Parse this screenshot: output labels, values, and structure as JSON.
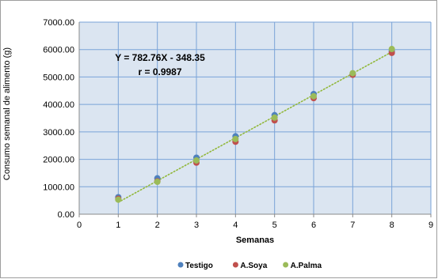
{
  "chart_data": {
    "type": "scatter",
    "xlabel": "Semanas",
    "ylabel": "Consumo semanal de alimento (g)",
    "xlim": [
      0,
      9
    ],
    "ylim": [
      0,
      7000
    ],
    "x_ticks": [
      "0",
      "1",
      "2",
      "3",
      "4",
      "5",
      "6",
      "7",
      "8",
      "9"
    ],
    "y_ticks": [
      "0.00",
      "1000.00",
      "2000.00",
      "3000.00",
      "4000.00",
      "5000.00",
      "6000.00",
      "7000.00"
    ],
    "grid": true,
    "plot_background": "#dbe5f1",
    "grid_color": "#7aa3d8",
    "legend_position": "bottom",
    "series": [
      {
        "name": "Testigo",
        "color": "#4f81bd",
        "x": [
          1,
          2,
          3,
          4,
          5,
          6,
          7,
          8
        ],
        "y": [
          620,
          1310,
          2060,
          2840,
          3610,
          4380,
          5110,
          5940
        ]
      },
      {
        "name": "A.Soya",
        "color": "#c0504d",
        "x": [
          1,
          2,
          3,
          4,
          5,
          6,
          7,
          8
        ],
        "y": [
          560,
          1200,
          1880,
          2640,
          3420,
          4230,
          5080,
          5880
        ]
      },
      {
        "name": "A.Palma",
        "color": "#9bbb59",
        "x": [
          1,
          2,
          3,
          4,
          5,
          6,
          7,
          8
        ],
        "y": [
          530,
          1180,
          1960,
          2740,
          3520,
          4300,
          5140,
          6020
        ]
      }
    ],
    "trendline": {
      "type": "linear",
      "slope": 782.76,
      "intercept": -348.35,
      "x_range": [
        1,
        8
      ],
      "style": "dotted",
      "color": "#92b83c"
    },
    "annotations": [
      "Y = 782.76X - 348.35",
      "r = 0.9987"
    ]
  }
}
